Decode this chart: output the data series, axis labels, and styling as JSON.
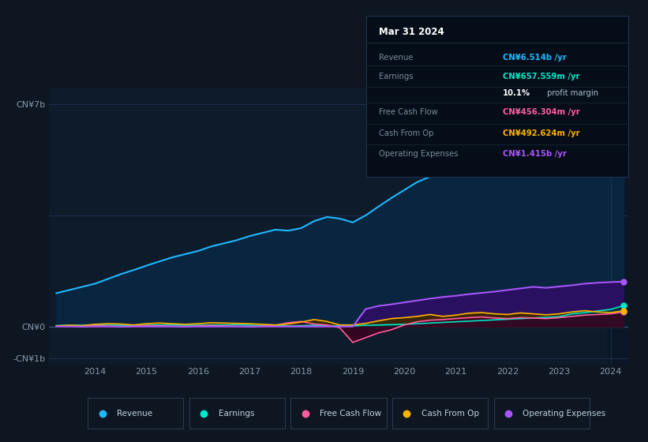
{
  "bg_color": "#0e1621",
  "plot_bg_color": "#0d1b2a",
  "grid_color": "#1e3050",
  "xlabel_ticks": [
    2014,
    2015,
    2016,
    2017,
    2018,
    2019,
    2020,
    2021,
    2022,
    2023,
    2024
  ],
  "series": {
    "revenue": {
      "color": "#1eb8ff",
      "label": "Revenue"
    },
    "earnings": {
      "color": "#00e5c8",
      "label": "Earnings"
    },
    "free_cash_flow": {
      "color": "#ff5fa0",
      "label": "Free Cash Flow"
    },
    "cash_from_op": {
      "color": "#ffb300",
      "label": "Cash From Op"
    },
    "operating_expenses": {
      "color": "#a855f7",
      "label": "Operating Expenses"
    }
  },
  "revenue_x": [
    2013.25,
    2013.5,
    2013.75,
    2014.0,
    2014.25,
    2014.5,
    2014.75,
    2015.0,
    2015.25,
    2015.5,
    2015.75,
    2016.0,
    2016.25,
    2016.5,
    2016.75,
    2017.0,
    2017.25,
    2017.5,
    2017.75,
    2018.0,
    2018.25,
    2018.5,
    2018.75,
    2019.0,
    2019.25,
    2019.5,
    2019.75,
    2020.0,
    2020.25,
    2020.5,
    2020.75,
    2021.0,
    2021.25,
    2021.5,
    2021.75,
    2022.0,
    2022.25,
    2022.5,
    2022.75,
    2023.0,
    2023.25,
    2023.5,
    2023.75,
    2024.0,
    2024.25
  ],
  "revenue_y": [
    1.05,
    1.15,
    1.25,
    1.35,
    1.5,
    1.65,
    1.78,
    1.92,
    2.05,
    2.18,
    2.28,
    2.38,
    2.52,
    2.62,
    2.72,
    2.85,
    2.95,
    3.05,
    3.02,
    3.1,
    3.32,
    3.45,
    3.4,
    3.28,
    3.5,
    3.78,
    4.05,
    4.3,
    4.55,
    4.72,
    4.88,
    5.05,
    5.28,
    5.45,
    5.62,
    5.82,
    5.95,
    6.05,
    6.08,
    6.18,
    6.48,
    6.58,
    6.48,
    6.38,
    6.514
  ],
  "earnings_x": [
    2013.25,
    2013.5,
    2013.75,
    2014.0,
    2014.25,
    2014.5,
    2014.75,
    2015.0,
    2015.25,
    2015.5,
    2015.75,
    2016.0,
    2016.25,
    2016.5,
    2016.75,
    2017.0,
    2017.25,
    2017.5,
    2017.75,
    2018.0,
    2018.25,
    2018.5,
    2018.75,
    2019.0,
    2019.25,
    2019.5,
    2019.75,
    2020.0,
    2020.25,
    2020.5,
    2020.75,
    2021.0,
    2021.25,
    2021.5,
    2021.75,
    2022.0,
    2022.25,
    2022.5,
    2022.75,
    2023.0,
    2023.25,
    2023.5,
    2023.75,
    2024.0,
    2024.25
  ],
  "earnings_y": [
    0.03,
    0.04,
    0.04,
    0.05,
    0.04,
    0.04,
    0.03,
    0.04,
    0.05,
    0.05,
    0.04,
    0.04,
    0.05,
    0.05,
    0.06,
    0.04,
    0.03,
    0.03,
    0.02,
    0.03,
    0.04,
    0.03,
    0.02,
    0.02,
    0.04,
    0.05,
    0.06,
    0.07,
    0.09,
    0.11,
    0.13,
    0.15,
    0.17,
    0.19,
    0.21,
    0.23,
    0.25,
    0.27,
    0.29,
    0.31,
    0.4,
    0.44,
    0.49,
    0.54,
    0.6576
  ],
  "fcf_x": [
    2013.25,
    2013.5,
    2013.75,
    2014.0,
    2014.25,
    2014.5,
    2014.75,
    2015.0,
    2015.25,
    2015.5,
    2015.75,
    2016.0,
    2016.25,
    2016.5,
    2016.75,
    2017.0,
    2017.25,
    2017.5,
    2017.75,
    2018.0,
    2018.25,
    2018.5,
    2018.75,
    2019.0,
    2019.25,
    2019.5,
    2019.75,
    2020.0,
    2020.25,
    2020.5,
    2020.75,
    2021.0,
    2021.25,
    2021.5,
    2021.75,
    2022.0,
    2022.25,
    2022.5,
    2022.75,
    2023.0,
    2023.25,
    2023.5,
    2023.75,
    2024.0,
    2024.25
  ],
  "fcf_y": [
    0.01,
    0.02,
    -0.01,
    0.03,
    0.02,
    -0.01,
    0.01,
    0.03,
    0.02,
    0.01,
    -0.01,
    0.02,
    0.03,
    0.02,
    0.01,
    -0.01,
    0.01,
    0.04,
    0.12,
    0.16,
    0.08,
    0.05,
    -0.04,
    -0.5,
    -0.35,
    -0.2,
    -0.1,
    0.05,
    0.15,
    0.2,
    0.22,
    0.25,
    0.28,
    0.3,
    0.27,
    0.25,
    0.28,
    0.27,
    0.25,
    0.28,
    0.32,
    0.36,
    0.38,
    0.4,
    0.456
  ],
  "cop_x": [
    2013.25,
    2013.5,
    2013.75,
    2014.0,
    2014.25,
    2014.5,
    2014.75,
    2015.0,
    2015.25,
    2015.5,
    2015.75,
    2016.0,
    2016.25,
    2016.5,
    2016.75,
    2017.0,
    2017.25,
    2017.5,
    2017.75,
    2018.0,
    2018.25,
    2018.5,
    2018.75,
    2019.0,
    2019.25,
    2019.5,
    2019.75,
    2020.0,
    2020.25,
    2020.5,
    2020.75,
    2021.0,
    2021.25,
    2021.5,
    2021.75,
    2022.0,
    2022.25,
    2022.5,
    2022.75,
    2023.0,
    2023.25,
    2023.5,
    2023.75,
    2024.0,
    2024.25
  ],
  "cop_y": [
    0.02,
    0.04,
    0.03,
    0.07,
    0.09,
    0.08,
    0.05,
    0.09,
    0.11,
    0.09,
    0.07,
    0.09,
    0.12,
    0.11,
    0.1,
    0.09,
    0.07,
    0.05,
    0.08,
    0.14,
    0.22,
    0.16,
    0.05,
    0.05,
    0.1,
    0.18,
    0.25,
    0.28,
    0.32,
    0.38,
    0.32,
    0.36,
    0.42,
    0.44,
    0.4,
    0.38,
    0.43,
    0.4,
    0.37,
    0.4,
    0.46,
    0.5,
    0.46,
    0.44,
    0.493
  ],
  "opex_x": [
    2013.25,
    2013.5,
    2013.75,
    2014.0,
    2014.25,
    2014.5,
    2014.75,
    2015.0,
    2015.25,
    2015.5,
    2015.75,
    2016.0,
    2016.25,
    2016.5,
    2016.75,
    2017.0,
    2017.25,
    2017.5,
    2017.75,
    2018.0,
    2018.25,
    2018.5,
    2018.75,
    2019.0,
    2019.25,
    2019.5,
    2019.75,
    2020.0,
    2020.25,
    2020.5,
    2020.75,
    2021.0,
    2021.25,
    2021.5,
    2021.75,
    2022.0,
    2022.25,
    2022.5,
    2022.75,
    2023.0,
    2023.25,
    2023.5,
    2023.75,
    2024.0,
    2024.25
  ],
  "opex_y": [
    0.0,
    0.0,
    0.0,
    0.0,
    0.0,
    0.0,
    0.0,
    0.0,
    0.0,
    0.0,
    0.0,
    0.0,
    0.0,
    0.0,
    0.0,
    0.0,
    0.0,
    0.0,
    0.0,
    0.0,
    0.0,
    0.0,
    0.0,
    0.0,
    0.55,
    0.65,
    0.7,
    0.76,
    0.82,
    0.88,
    0.93,
    0.97,
    1.02,
    1.06,
    1.1,
    1.15,
    1.2,
    1.25,
    1.22,
    1.26,
    1.3,
    1.35,
    1.38,
    1.4,
    1.415
  ],
  "tooltip": {
    "date": "Mar 31 2024",
    "rows": [
      {
        "label": "Revenue",
        "value": "CN¥6.514b /yr",
        "color": "#1eb8ff"
      },
      {
        "label": "Earnings",
        "value": "CN¥657.559m /yr",
        "color": "#00e5c8"
      },
      {
        "label": "",
        "value": "10.1% profit margin",
        "color": "#cccccc",
        "bold_prefix": "10.1%"
      },
      {
        "label": "Free Cash Flow",
        "value": "CN¥456.304m /yr",
        "color": "#ff5fa0"
      },
      {
        "label": "Cash From Op",
        "value": "CN¥492.624m /yr",
        "color": "#ffb300"
      },
      {
        "label": "Operating Expenses",
        "value": "CN¥1.415b /yr",
        "color": "#a855f7"
      }
    ]
  },
  "legend_items": [
    {
      "label": "Revenue",
      "color": "#1eb8ff"
    },
    {
      "label": "Earnings",
      "color": "#00e5c8"
    },
    {
      "label": "Free Cash Flow",
      "color": "#ff5fa0"
    },
    {
      "label": "Cash From Op",
      "color": "#ffb300"
    },
    {
      "label": "Operating Expenses",
      "color": "#a855f7"
    }
  ]
}
